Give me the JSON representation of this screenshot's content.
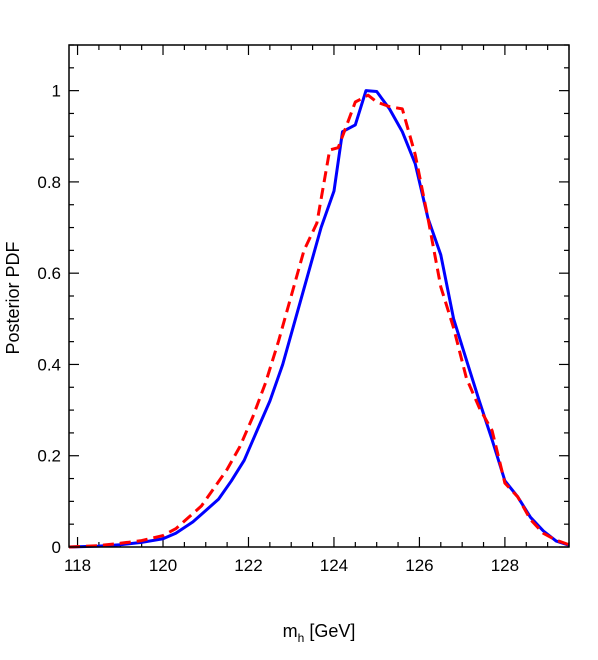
{
  "chart_data": {
    "type": "line",
    "title": "",
    "xlabel": "m",
    "xlabel_sub": "h",
    "xlabel_unit": " [GeV]",
    "ylabel": "Posterior PDF",
    "xlim": [
      117.8,
      129.5
    ],
    "ylim": [
      0,
      1.1
    ],
    "xticks": [
      118,
      120,
      122,
      124,
      126,
      128
    ],
    "yticks": [
      0,
      0.2,
      0.4,
      0.6,
      0.8,
      1
    ],
    "ytick_labels": [
      "0",
      "0.2",
      "0.4",
      "0.6",
      "0.8",
      "1"
    ],
    "grid": false,
    "legend": "none",
    "series": [
      {
        "color": "#0000ff",
        "style": "solid",
        "x": [
          117.8,
          118.5,
          119.0,
          119.5,
          120.0,
          120.3,
          120.7,
          121.0,
          121.3,
          121.6,
          121.9,
          122.2,
          122.5,
          122.8,
          123.1,
          123.4,
          123.7,
          124.0,
          124.2,
          124.5,
          124.75,
          125.0,
          125.3,
          125.6,
          125.9,
          126.2,
          126.5,
          126.8,
          127.1,
          127.4,
          127.7,
          128.0,
          128.3,
          128.6,
          128.9,
          129.2,
          129.5
        ],
        "y": [
          0.0,
          0.002,
          0.005,
          0.01,
          0.018,
          0.03,
          0.055,
          0.08,
          0.105,
          0.145,
          0.19,
          0.255,
          0.32,
          0.4,
          0.5,
          0.6,
          0.7,
          0.78,
          0.91,
          0.925,
          1.0,
          0.998,
          0.96,
          0.91,
          0.84,
          0.72,
          0.64,
          0.5,
          0.41,
          0.32,
          0.235,
          0.145,
          0.11,
          0.065,
          0.035,
          0.013,
          0.004
        ]
      },
      {
        "color": "#ff0000",
        "style": "dashed",
        "x": [
          117.8,
          118.5,
          119.0,
          119.5,
          120.0,
          120.3,
          120.6,
          120.9,
          121.2,
          121.5,
          121.8,
          122.1,
          122.4,
          122.7,
          123.0,
          123.3,
          123.6,
          123.9,
          124.1,
          124.3,
          124.5,
          124.8,
          125.0,
          125.3,
          125.6,
          125.9,
          126.2,
          126.5,
          126.8,
          127.1,
          127.4,
          127.7,
          128.0,
          128.3,
          128.6,
          128.9,
          129.2,
          129.5
        ],
        "y": [
          0.0,
          0.003,
          0.008,
          0.014,
          0.025,
          0.04,
          0.065,
          0.09,
          0.13,
          0.17,
          0.22,
          0.285,
          0.36,
          0.45,
          0.55,
          0.65,
          0.71,
          0.87,
          0.875,
          0.925,
          0.975,
          0.99,
          0.975,
          0.965,
          0.96,
          0.86,
          0.72,
          0.57,
          0.48,
          0.37,
          0.305,
          0.255,
          0.14,
          0.11,
          0.06,
          0.03,
          0.015,
          0.005
        ]
      }
    ]
  }
}
